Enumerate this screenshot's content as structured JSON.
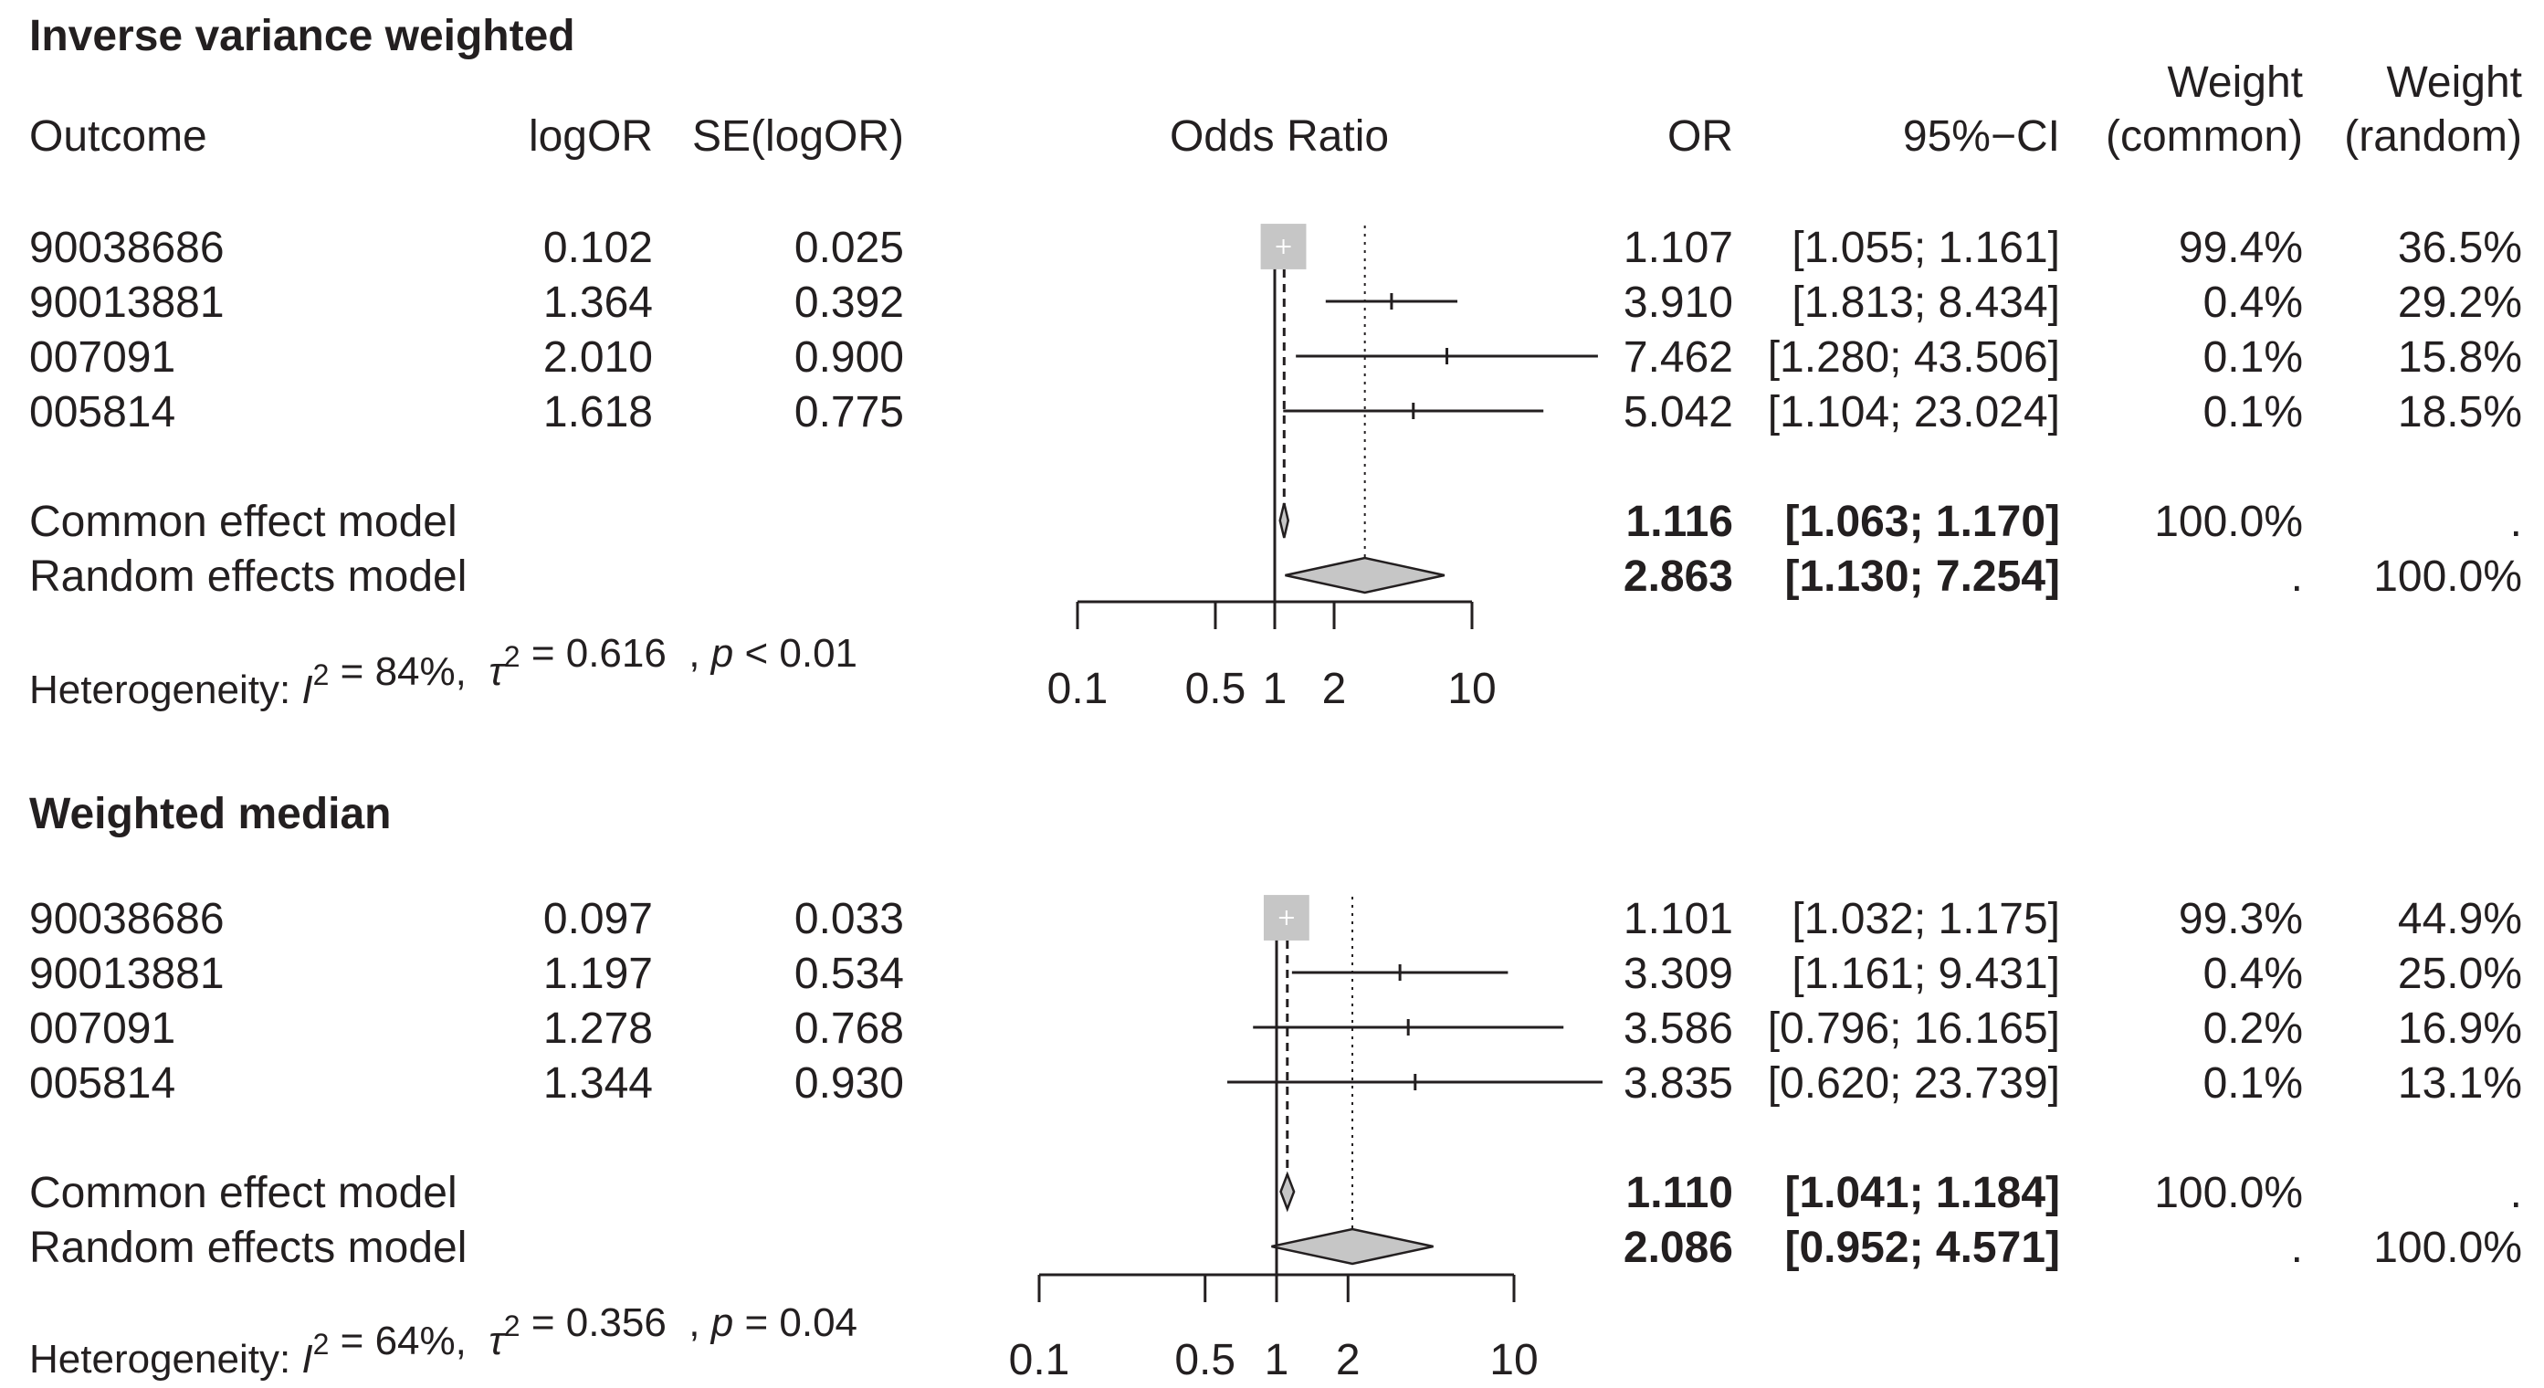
{
  "chart_data": [
    {
      "type": "forest",
      "title": "Inverse variance weighted",
      "headers": {
        "outcome": "Outcome",
        "logor": "logOR",
        "se": "SE(logOR)",
        "plot": "Odds Ratio",
        "or": "OR",
        "ci": "95%−CI",
        "w_common_1": "Weight",
        "w_common_2": "(common)",
        "w_random_1": "Weight",
        "w_random_2": "(random)"
      },
      "studies": [
        {
          "outcome": "90038686",
          "logor": "0.102",
          "se": "0.025",
          "or_label": "1.107",
          "ci_label": "[1.055;  1.161]",
          "w_common": "99.4%",
          "w_random": "36.5%",
          "or": 1.107,
          "lo": 1.055,
          "hi": 1.161,
          "weight": 99.4
        },
        {
          "outcome": "90013881",
          "logor": "1.364",
          "se": "0.392",
          "or_label": "3.910",
          "ci_label": "[1.813;  8.434]",
          "w_common": "0.4%",
          "w_random": "29.2%",
          "or": 3.91,
          "lo": 1.813,
          "hi": 8.434,
          "weight": 0.4
        },
        {
          "outcome": "007091",
          "logor": "2.010",
          "se": "0.900",
          "or_label": "7.462",
          "ci_label": "[1.280; 43.506]",
          "w_common": "0.1%",
          "w_random": "15.8%",
          "or": 7.462,
          "lo": 1.28,
          "hi": 43.506,
          "weight": 0.1
        },
        {
          "outcome": "005814",
          "logor": "1.618",
          "se": "0.775",
          "or_label": "5.042",
          "ci_label": "[1.104; 23.024]",
          "w_common": "0.1%",
          "w_random": "18.5%",
          "or": 5.042,
          "lo": 1.104,
          "hi": 23.024,
          "weight": 0.1
        }
      ],
      "common": {
        "label": "Common effect model",
        "or_label": "1.116",
        "ci_label": "[1.063;  1.170]",
        "w_common": "100.0%",
        "w_random": ".",
        "or": 1.116,
        "lo": 1.063,
        "hi": 1.17
      },
      "random": {
        "label": "Random effects model",
        "or_label": "2.863",
        "ci_label": "[1.130;  7.254]",
        "w_common": ".",
        "w_random": "100.0%",
        "or": 2.863,
        "lo": 1.13,
        "hi": 7.254
      },
      "heterogeneity": {
        "prefix": "Heterogeneity: ",
        "i2_sym": "I",
        "i2_sup": "2",
        "i2_val": " = 84%,  ",
        "tau2_sym": "τ",
        "tau2_sup": "2",
        "tau2_val": " = 0.616  , ",
        "p_sym": "p",
        "p_val": " < 0.01"
      },
      "axis": {
        "scale": "log",
        "ticks": [
          0.1,
          0.5,
          1,
          2,
          10
        ],
        "tick_labels": [
          "0.1",
          "0.5",
          "1",
          "2",
          "10"
        ],
        "xlim": [
          0.1,
          10
        ]
      }
    },
    {
      "type": "forest",
      "title": "Weighted median",
      "studies": [
        {
          "outcome": "90038686",
          "logor": "0.097",
          "se": "0.033",
          "or_label": "1.101",
          "ci_label": "[1.032;  1.175]",
          "w_common": "99.3%",
          "w_random": "44.9%",
          "or": 1.101,
          "lo": 1.032,
          "hi": 1.175,
          "weight": 99.3
        },
        {
          "outcome": "90013881",
          "logor": "1.197",
          "se": "0.534",
          "or_label": "3.309",
          "ci_label": "[1.161;  9.431]",
          "w_common": "0.4%",
          "w_random": "25.0%",
          "or": 3.309,
          "lo": 1.161,
          "hi": 9.431,
          "weight": 0.4
        },
        {
          "outcome": "007091",
          "logor": "1.278",
          "se": "0.768",
          "or_label": "3.586",
          "ci_label": "[0.796; 16.165]",
          "w_common": "0.2%",
          "w_random": "16.9%",
          "or": 3.586,
          "lo": 0.796,
          "hi": 16.165,
          "weight": 0.2
        },
        {
          "outcome": "005814",
          "logor": "1.344",
          "se": "0.930",
          "or_label": "3.835",
          "ci_label": "[0.620; 23.739]",
          "w_common": "0.1%",
          "w_random": "13.1%",
          "or": 3.835,
          "lo": 0.62,
          "hi": 23.739,
          "weight": 0.1
        }
      ],
      "common": {
        "label": "Common effect model",
        "or_label": "1.110",
        "ci_label": "[1.041;  1.184]",
        "w_common": "100.0%",
        "w_random": ".",
        "or": 1.11,
        "lo": 1.041,
        "hi": 1.184
      },
      "random": {
        "label": "Random effects model",
        "or_label": "2.086",
        "ci_label": "[0.952;  4.571]",
        "w_common": ".",
        "w_random": "100.0%",
        "or": 2.086,
        "lo": 0.952,
        "hi": 4.571
      },
      "heterogeneity": {
        "prefix": "Heterogeneity: ",
        "i2_sym": "I",
        "i2_sup": "2",
        "i2_val": " = 64%,  ",
        "tau2_sym": "τ",
        "tau2_sup": "2",
        "tau2_val": " = 0.356  , ",
        "p_sym": "p",
        "p_val": " = 0.04"
      },
      "axis": {
        "scale": "log",
        "ticks": [
          0.1,
          0.5,
          1,
          2,
          10
        ],
        "tick_labels": [
          "0.1",
          "0.5",
          "1",
          "2",
          "10"
        ],
        "xlim": [
          0.1,
          10
        ]
      }
    }
  ]
}
